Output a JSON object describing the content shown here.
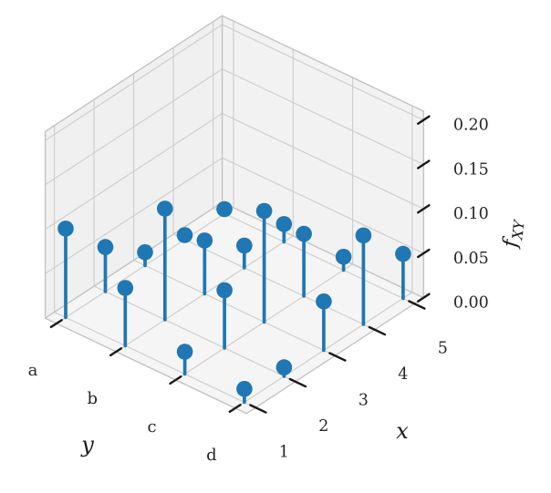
{
  "figure": {
    "kind": "3d-stem-plot",
    "background": "#ffffff"
  },
  "chart_data": {
    "type": "scatter",
    "variant": "3d-stem-lollipop",
    "title": "",
    "xlabel": "x",
    "ylabel": "y",
    "zlabel": "f_XY",
    "zlabel_main": "f",
    "zlabel_sub": "XY",
    "x_ticks": [
      "1",
      "2",
      "3",
      "4",
      "5"
    ],
    "x_values": [
      1,
      2,
      3,
      4,
      5
    ],
    "y_ticks": [
      "a",
      "b",
      "c",
      "d"
    ],
    "z_ticks": [
      "0.00",
      "0.05",
      "0.10",
      "0.15",
      "0.20"
    ],
    "z_tick_values": [
      0.0,
      0.05,
      0.1,
      0.15,
      0.2
    ],
    "zlim": [
      0,
      0.21
    ],
    "grid": true,
    "legend": false,
    "marker_color": "#1f77b4",
    "stem_color": "#1f77b4",
    "tick_color": "#1a1a1a",
    "pane_color_left": "#f0f0f0",
    "pane_color_right": "#f2f2f2",
    "pane_color_floor": "#f5f5f5",
    "grid_color": "#cfcfcf",
    "edge_color": "#c4c4c4",
    "series": [
      {
        "name": "y=a",
        "y": "a",
        "values": [
          0.1,
          0.05,
          0.015,
          0.005,
          0.005
        ]
      },
      {
        "name": "y=b",
        "y": "b",
        "values": [
          0.065,
          0.125,
          0.06,
          0.025,
          0.02
        ]
      },
      {
        "name": "y=c",
        "y": "c",
        "values": [
          0.025,
          0.065,
          0.125,
          0.07,
          0.015
        ]
      },
      {
        "name": "y=d",
        "y": "d",
        "values": [
          0.015,
          0.01,
          0.055,
          0.1,
          0.05
        ]
      }
    ]
  }
}
